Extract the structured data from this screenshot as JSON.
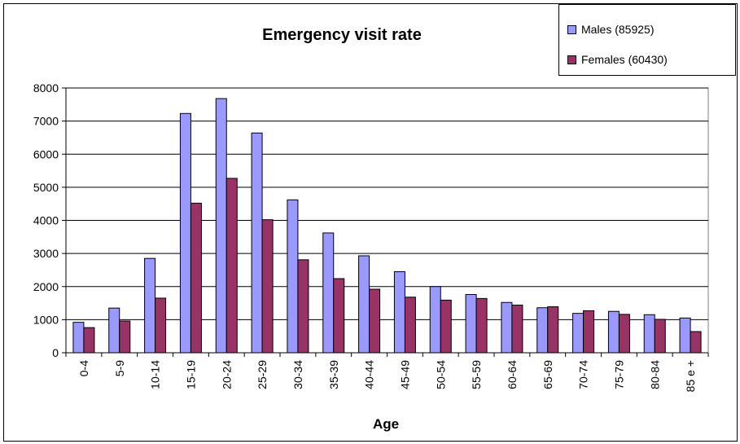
{
  "chart_data": {
    "type": "bar",
    "title": "Emergency visit rate",
    "xlabel": "Age",
    "ylabel": "",
    "ylim": [
      0,
      8000
    ],
    "yticks": [
      0,
      1000,
      2000,
      3000,
      4000,
      5000,
      6000,
      7000,
      8000
    ],
    "grid": true,
    "legend_position": "top-right",
    "categories": [
      "0-4",
      "5-9",
      "10-14",
      "15-19",
      "20-24",
      "25-29",
      "30-34",
      "35-39",
      "40-44",
      "45-49",
      "50-54",
      "55-59",
      "60-64",
      "65-69",
      "70-74",
      "75-79",
      "80-84",
      "85 e +"
    ],
    "series": [
      {
        "name": "Males (85925)",
        "color": "#9999FF",
        "values": [
          920,
          1350,
          2850,
          7230,
          7680,
          6640,
          4620,
          3620,
          2930,
          2450,
          2000,
          1760,
          1520,
          1360,
          1190,
          1250,
          1150,
          1050
        ]
      },
      {
        "name": "Females (60430)",
        "color": "#993366",
        "values": [
          760,
          960,
          1650,
          4520,
          5270,
          4020,
          2810,
          2240,
          1920,
          1680,
          1590,
          1640,
          1440,
          1390,
          1270,
          1160,
          1010,
          640
        ]
      }
    ]
  }
}
